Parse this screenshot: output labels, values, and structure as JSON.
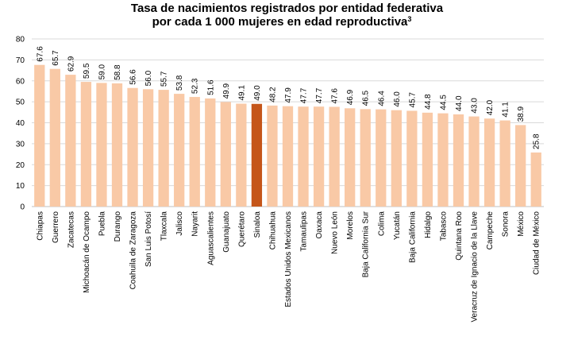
{
  "chart_data": {
    "type": "bar",
    "title_line1": "Tasa de nacimientos registrados por entidad federativa",
    "title_line2": "por cada 1 000 mujeres en edad reproductiva",
    "title_superscript": "3",
    "xlabel": "",
    "ylabel": "",
    "ylim": [
      0,
      80
    ],
    "yticks": [
      "0",
      "10",
      "20",
      "30",
      "40",
      "50",
      "60",
      "70",
      "80"
    ],
    "grid": true,
    "colors": {
      "bar": "#f9c9a6",
      "highlight": "#c5561a",
      "grid": "#d9d9d9"
    },
    "highlight_index": 14,
    "categories": [
      "Chiapas",
      "Guerrero",
      "Zacatecas",
      "Michoacán de Ocampo",
      "Puebla",
      "Durango",
      "Coahuila de Zaragoza",
      "San Luis Potosí",
      "Tlaxcala",
      "Jalisco",
      "Nayarit",
      "Aguascalientes",
      "Guanajuato",
      "Querétaro",
      "Sinaloa",
      "Chihuahua",
      "Estados Unidos Mexicanos",
      "Tamaulipas",
      "Oaxaca",
      "Nuevo León",
      "Morelos",
      "Baja California Sur",
      "Colima",
      "Yucatán",
      "Baja California",
      "Hidalgo",
      "Tabasco",
      "Quintana Roo",
      "Veracruz de Ignacio de la Llave",
      "Campeche",
      "Sonora",
      "México",
      "Ciudad de México"
    ],
    "values": [
      67.6,
      65.7,
      62.9,
      59.5,
      59.0,
      58.8,
      56.6,
      56.0,
      55.7,
      53.8,
      52.3,
      51.6,
      49.9,
      49.1,
      49.0,
      48.2,
      47.9,
      47.7,
      47.7,
      47.6,
      46.9,
      46.5,
      46.4,
      46.0,
      45.7,
      44.8,
      44.5,
      44.0,
      43.0,
      42.0,
      41.1,
      38.9,
      25.8
    ],
    "value_labels": [
      "67.6",
      "65.7",
      "62.9",
      "59.5",
      "59.0",
      "58.8",
      "56.6",
      "56.0",
      "55.7",
      "53.8",
      "52.3",
      "51.6",
      "49.9",
      "49.1",
      "49.0",
      "48.2",
      "47.9",
      "47.7",
      "47.7",
      "47.6",
      "46.9",
      "46.5",
      "46.4",
      "46.0",
      "45.7",
      "44.8",
      "44.5",
      "44.0",
      "43.0",
      "42.0",
      "41.1",
      "38.9",
      "25.8"
    ]
  }
}
